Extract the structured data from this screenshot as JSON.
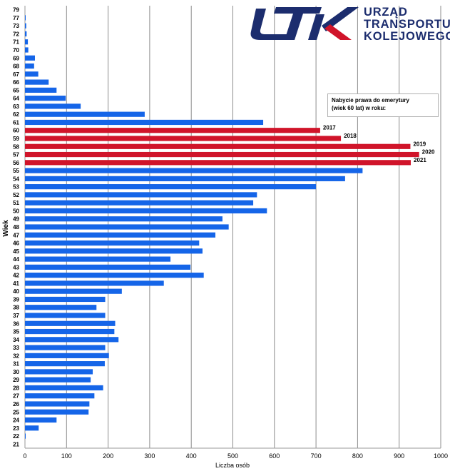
{
  "logo": {
    "line1": "URZĄD",
    "line2": "TRANSPORTU",
    "line3": "KOLEJOWEGO",
    "navy": "#1c2d6e",
    "red": "#d0142a"
  },
  "legend": {
    "title_line1": "Nabycie prawa do emerytury",
    "title_line2": "(wiek 60 lat) w roku:"
  },
  "chart_data": {
    "type": "bar",
    "orientation": "horizontal",
    "title": "",
    "xlabel": "Liczba osób",
    "ylabel": "Wiek",
    "xlim": [
      0,
      1000
    ],
    "xticks": [
      0,
      100,
      200,
      300,
      400,
      500,
      600,
      700,
      800,
      900,
      1000
    ],
    "grid": "vertical",
    "categories": [
      "79",
      "77",
      "73",
      "72",
      "71",
      "70",
      "69",
      "68",
      "67",
      "66",
      "65",
      "64",
      "63",
      "62",
      "61",
      "60",
      "59",
      "58",
      "57",
      "56",
      "55",
      "54",
      "53",
      "52",
      "51",
      "50",
      "49",
      "48",
      "47",
      "46",
      "45",
      "44",
      "43",
      "42",
      "41",
      "40",
      "39",
      "38",
      "37",
      "36",
      "35",
      "34",
      "33",
      "32",
      "31",
      "30",
      "29",
      "28",
      "27",
      "26",
      "25",
      "24",
      "23",
      "22",
      "21"
    ],
    "values": [
      0,
      1,
      3,
      4,
      7,
      8,
      24,
      22,
      32,
      57,
      76,
      98,
      134,
      288,
      573,
      710,
      760,
      927,
      948,
      928,
      812,
      770,
      700,
      558,
      549,
      582,
      475,
      490,
      458,
      419,
      427,
      350,
      398,
      430,
      334,
      233,
      193,
      172,
      193,
      217,
      215,
      225,
      193,
      202,
      192,
      163,
      158,
      188,
      167,
      155,
      153,
      76,
      33,
      1,
      0
    ],
    "highlight_color": "#d0142a",
    "base_color": "#1565e8",
    "highlighted": [
      {
        "age": "60",
        "label": "2017"
      },
      {
        "age": "59",
        "label": "2018"
      },
      {
        "age": "58",
        "label": "2019"
      },
      {
        "age": "57",
        "label": "2020"
      },
      {
        "age": "56",
        "label": "2021"
      }
    ]
  }
}
